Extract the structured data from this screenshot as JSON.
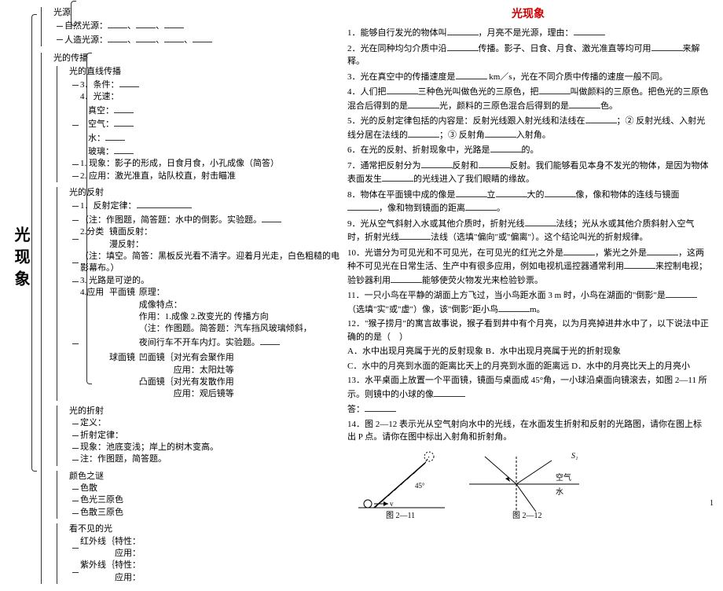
{
  "title": "光现象",
  "root": "光现象",
  "tree": {
    "光源": {
      "自然光源": "_____、_____、_____",
      "人造光源": "_____、_____、_____、_____"
    },
    "光的传播": {
      "光的直线传播": {
        "条件": "3. 条件：_____",
        "光速": [
          "真空：_____",
          "空气：_____",
          "水：_____",
          "玻璃：_____"
        ],
        "现象": "1. 现象：影子的形成，日食月食，小孔成像（简答）",
        "应用": "2. 应用：激光准直，站队校直，射击瞄准"
      },
      "光的反射": {
        "反射定律": "1. 反射定律：_____",
        "注1": "（注：作图题，简答题：水中的倒影。实验题。_____",
        "分类": [
          "镜面反射：",
          "漫反射："
        ],
        "注2": "（注：填空。简答：黑板反光看不清字。迎着月光走，白色粗糙的电影幕布。）",
        "光路可逆": "3. 光路是可逆的。",
        "平面镜": [
          "原理：",
          "成像特点：",
          "作用：1.成像 2.改变光的 传播方向",
          "（注：作图题。简答题：汽车挡风玻璃倾斜，夜间行车不开车内灯。实验题。_____"
        ],
        "球面镜": [
          "凹面镜｛对光有会聚作用  应用：太阳灶等",
          "凸面镜｛对光有发散作用  应用：观后镜等"
        ]
      },
      "光的折射": {
        "定义": "定义：",
        "折射定律": "折射定律：",
        "现象": "现象：池底变浅；岸上的树木变高。",
        "注": "注：作图题，简答题。"
      },
      "颜色之谜": [
        "色散",
        "色光三原色",
        "色散三原色"
      ],
      "看不见的光": [
        "红外线｛特性：  应用：",
        "紫外线｛特性：  应用："
      ]
    }
  },
  "questions": [
    "1．能够自行发光的物体叫__________，月亮不是光源，理由：__________",
    "2．光在同种均匀介质中沿__________传播。影子、日食、月食、激光准直等均可用__________来解释。",
    "3．光在真空中的传播速度是__________ km／s，光在不同介质中传播的速度一般不同。",
    "4．人们把__________三种色光叫做色光的三原色，把__________叫做颜料的三原色。把色光的三原色混合后得到的是__________光，颜料的三原色混合后得到的是__________色。",
    "5．光的反射定律包括的内容是：反射光线跟入射光线和法线在__________；② 反射光线、入射光线分居在法线的__________；③ 反射角__________入射角。",
    "6．在光的反射、折射现象中，光路是__________的。",
    "7．通常把反射分为__________反射和__________反射。我们能够看见本身不发光的物体，是因为物体表面发生__________的光线进入了我们眼睛的缘故。",
    "8．物体在平面镜中成的像是__________立__________大的__________像，像和物体的连线与镜面__________，像和物到镜面的距离__________。",
    "9．光从空气斜射入水或其他介质时，折射光线__________法线；光从水或其他介质斜射入空气时，折射光线__________法线（选填\"偏向\"或\"偏离\"）。这个结论叫光的折射规律。",
    "10．光谱分为可见光和不可见光，在可见光的红光之外是__________，紫光之外是__________，这两种不可见光在日常生活、生产中有很多应用，例如电视机遥控器通常利用__________来控制电视；验钞器利用__________能够使荧火物发光来检验钞票。",
    "11．一只小鸟在平静的湖面上方飞过，当小鸟距水面 3 m 时，小鸟在湖面的\"倒影\"是__________（选填\"实\"或\"虚\"）像，该\"倒影\"距小鸟__________m。",
    "12．\"猴子捞月\"的寓言故事说，猴子看到井中有个月亮，以为月亮掉进井水中了，以下说法中正确的的是（　）",
    "A．水中出现月亮属于光的反射现象 B．水中出现月亮属于光的折射现象",
    "C．水中的月亮到水面的距离比天上的月亮到水面的距离远 D．水中的月亮比天上的月亮小",
    "13．水平桌面上放置一个平面镜，镜面与桌面成 45°角，一小球沿桌面向镜滚去，如图 2—11 所示。则镜中的小球的像__________",
    "答：__________",
    "14．图 2—12 表示光从空气射向水中的光线，在水面发生折射和反射的光路图，请你在图上标出 P 点。请你在图中标出入射角和折射角。"
  ],
  "fig1_label": "图 2—11",
  "fig2_label": "图 2—12",
  "fig2_labels": {
    "air": "空气",
    "water": "水"
  },
  "pagenum": "1",
  "colors": {
    "title": "#d00000",
    "text": "#000000",
    "line": "#333333",
    "bg": "#ffffff"
  }
}
